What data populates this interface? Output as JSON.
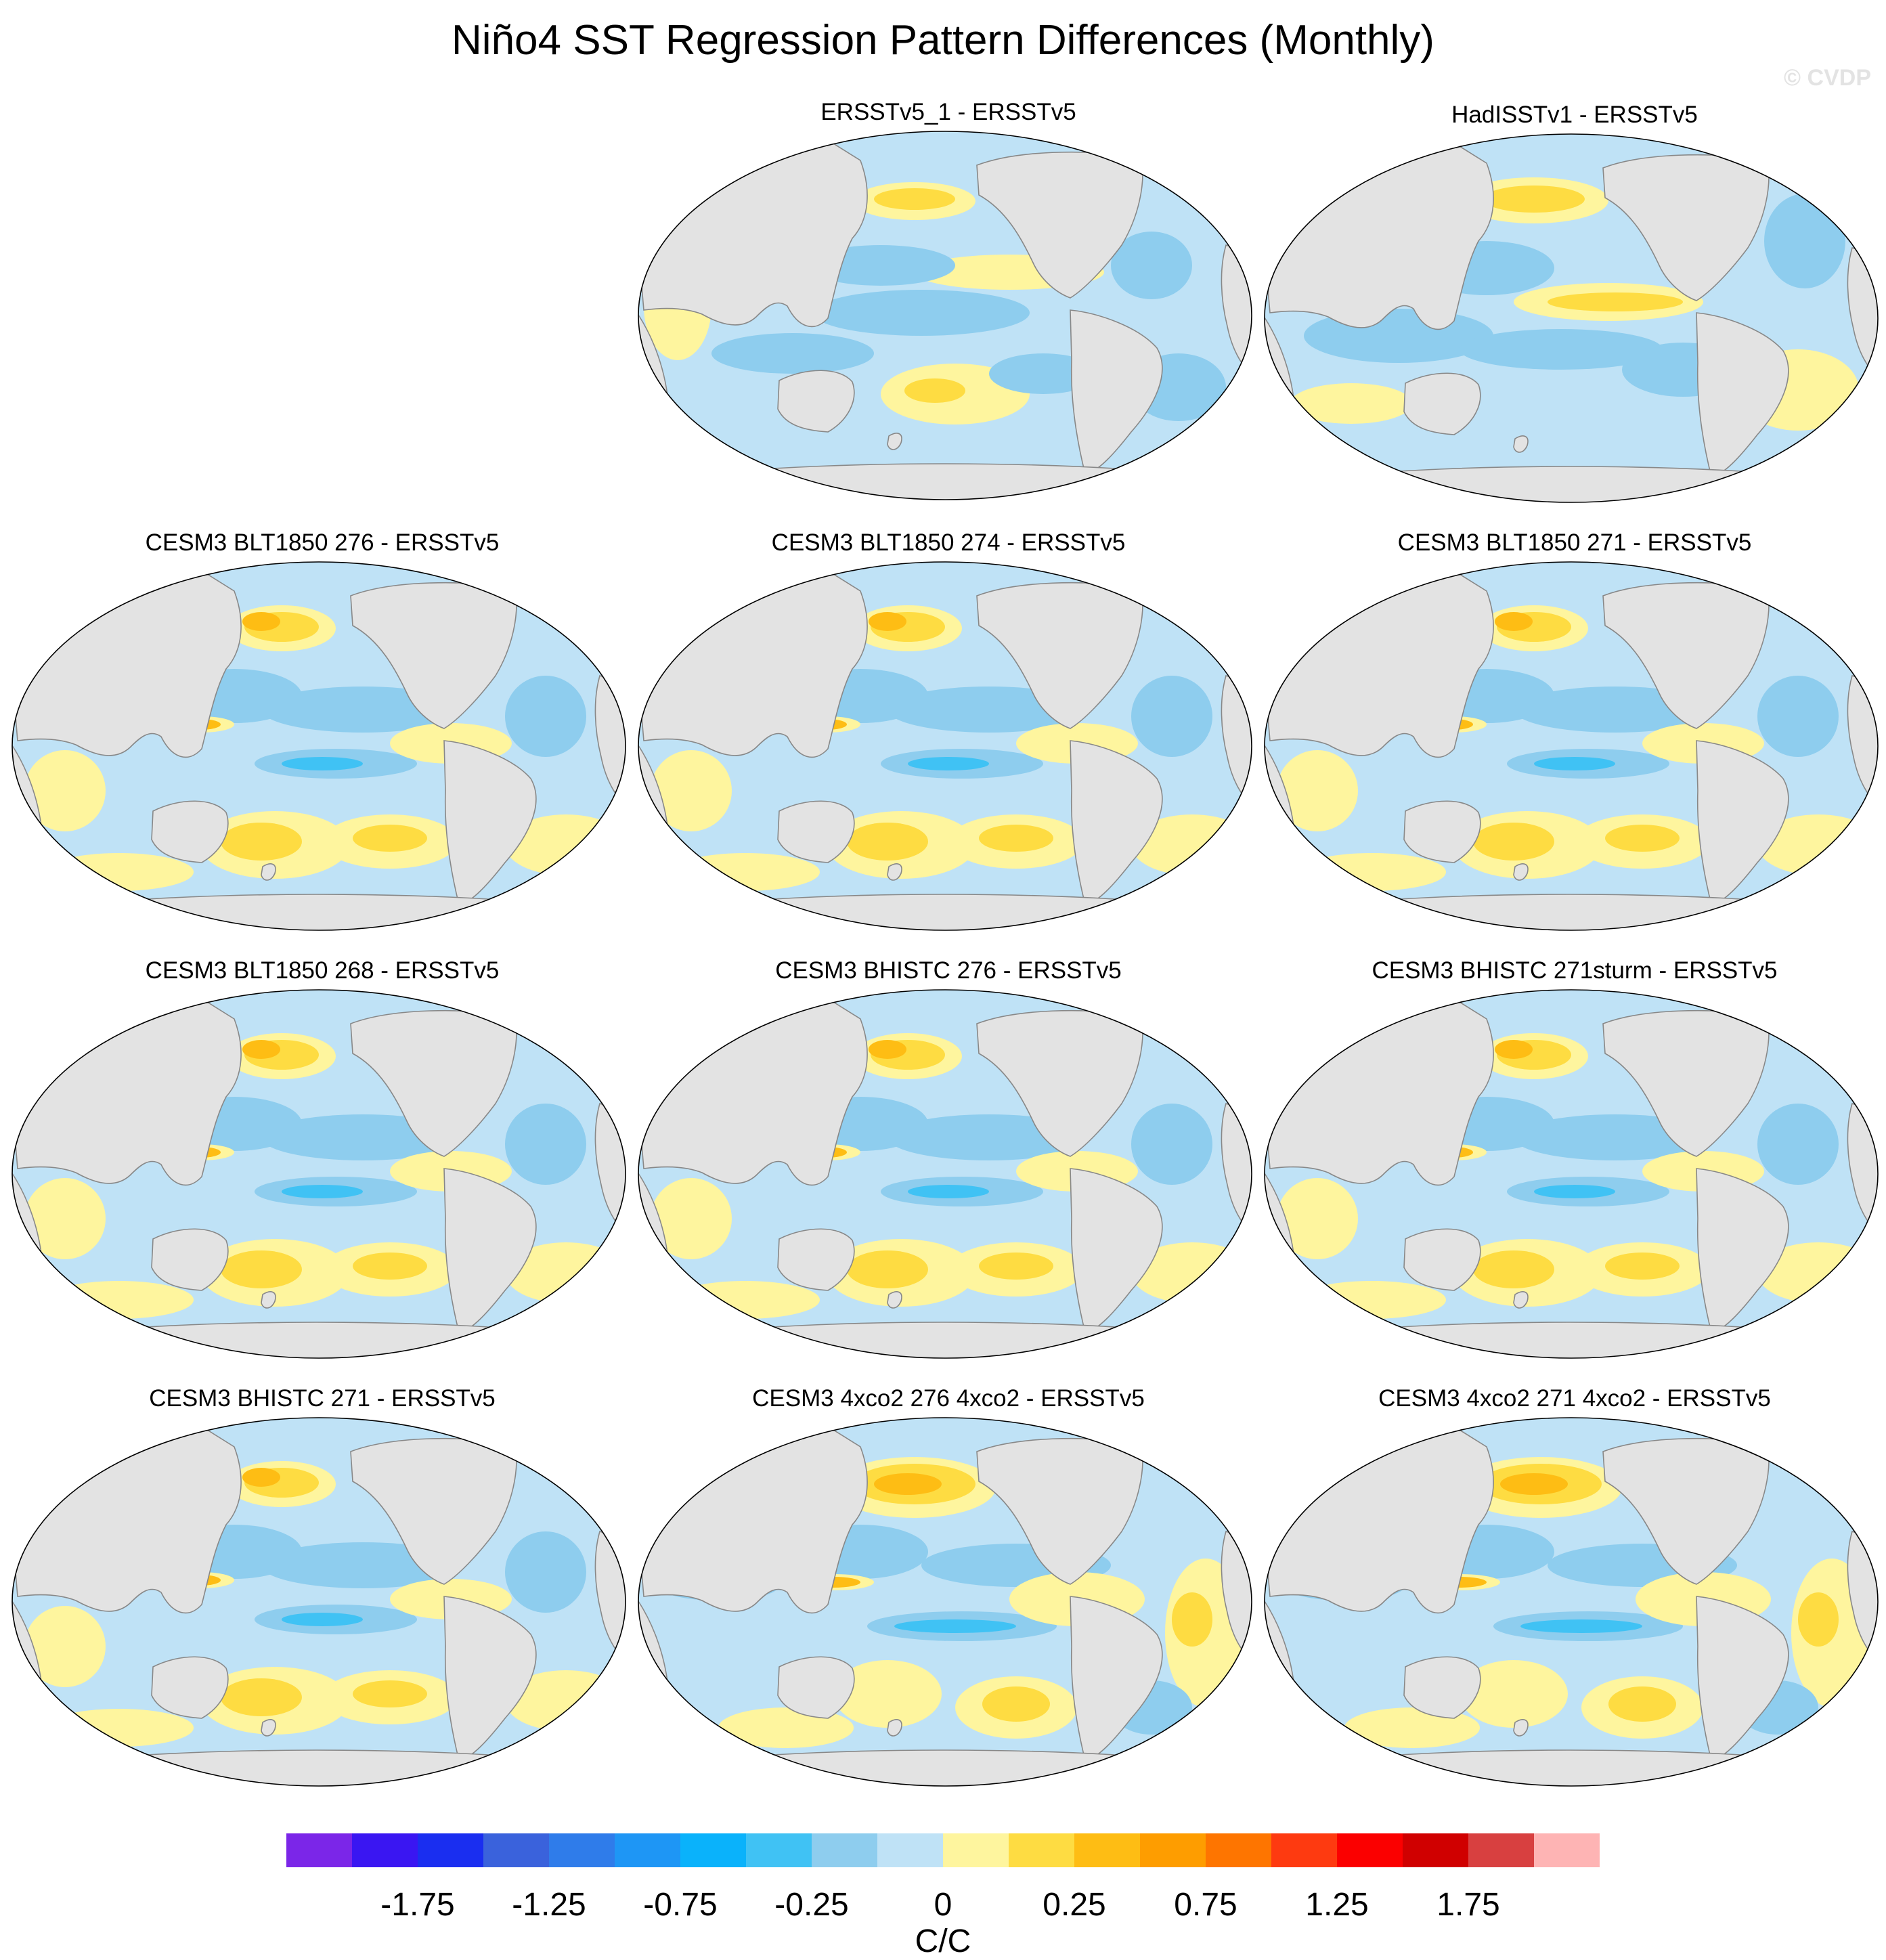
{
  "title": "Niño4 SST Regression Pattern Differences (Monthly)",
  "watermark": "© CVDP",
  "panels": [
    {
      "title": "ERSSTv5_1 - ERSSTv5",
      "pattern": "obs1"
    },
    {
      "title": "HadISSTv1 - ERSSTv5",
      "pattern": "obs2"
    },
    {
      "title": "CESM3 BLT1850 276 - ERSSTv5",
      "pattern": "model"
    },
    {
      "title": "CESM3 BLT1850 274 - ERSSTv5",
      "pattern": "model"
    },
    {
      "title": "CESM3 BLT1850 271 - ERSSTv5",
      "pattern": "model"
    },
    {
      "title": "CESM3 BLT1850 268 - ERSSTv5",
      "pattern": "model"
    },
    {
      "title": "CESM3 BHISTC 276 - ERSSTv5",
      "pattern": "model"
    },
    {
      "title": "CESM3 BHISTC 271sturm - ERSSTv5",
      "pattern": "model"
    },
    {
      "title": "CESM3 BHISTC 271 - ERSSTv5",
      "pattern": "model"
    },
    {
      "title": "CESM3 4xco2 276 4xco2 - ERSSTv5",
      "pattern": "co2"
    },
    {
      "title": "CESM3 4xco2 271 4xco2 - ERSSTv5",
      "pattern": "co2"
    }
  ],
  "colorbar": {
    "colors": [
      "#7b26e8",
      "#3a16f2",
      "#1a2ef0",
      "#3a62dc",
      "#2f7cea",
      "#1e96f5",
      "#0ab2fb",
      "#40c2f4",
      "#8ecdee",
      "#bfe2f6",
      "#fef59e",
      "#fedc42",
      "#febd14",
      "#fe9d00",
      "#fe7500",
      "#fe3a10",
      "#fb0000",
      "#d00000",
      "#d84040",
      "#feb4b4"
    ],
    "tick_labels": [
      "-1.75",
      "-1.25",
      "-0.75",
      "-0.25",
      "0",
      "0.25",
      "0.75",
      "1.25",
      "1.75"
    ],
    "units": "C/C"
  },
  "map_colors": {
    "land": "#e3e3e3",
    "coast": "#888888",
    "ocean_base": "#bfe2f6",
    "neg_mid": "#8ecdee",
    "neg_strong": "#40c2f4",
    "pos_weak": "#fef59e",
    "pos_mid": "#fedc42",
    "pos_strong": "#febd14"
  }
}
